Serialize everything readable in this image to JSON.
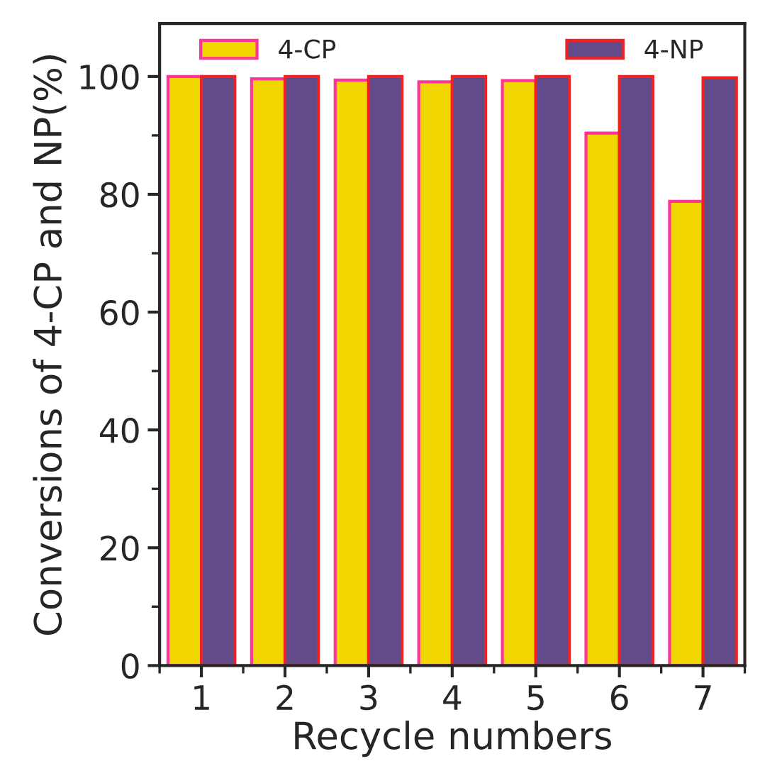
{
  "chart_data": {
    "type": "bar",
    "xlabel": "Recycle numbers",
    "ylabel": "Conversions of 4-CP and NP(%)",
    "categories": [
      "1",
      "2",
      "3",
      "4",
      "5",
      "6",
      "7"
    ],
    "series": [
      {
        "name": "4-CP",
        "color": "#f2d600",
        "values": [
          100,
          99.6,
          99.4,
          99.1,
          99.3,
          90.4,
          78.8
        ]
      },
      {
        "name": "4-NP",
        "color": "#634a8a",
        "values": [
          100,
          100,
          100,
          100,
          100,
          100,
          99.8
        ]
      }
    ],
    "ylim": [
      0,
      109
    ],
    "yticks": [
      0,
      20,
      40,
      60,
      80,
      100
    ],
    "grid": false,
    "legend": "top"
  }
}
